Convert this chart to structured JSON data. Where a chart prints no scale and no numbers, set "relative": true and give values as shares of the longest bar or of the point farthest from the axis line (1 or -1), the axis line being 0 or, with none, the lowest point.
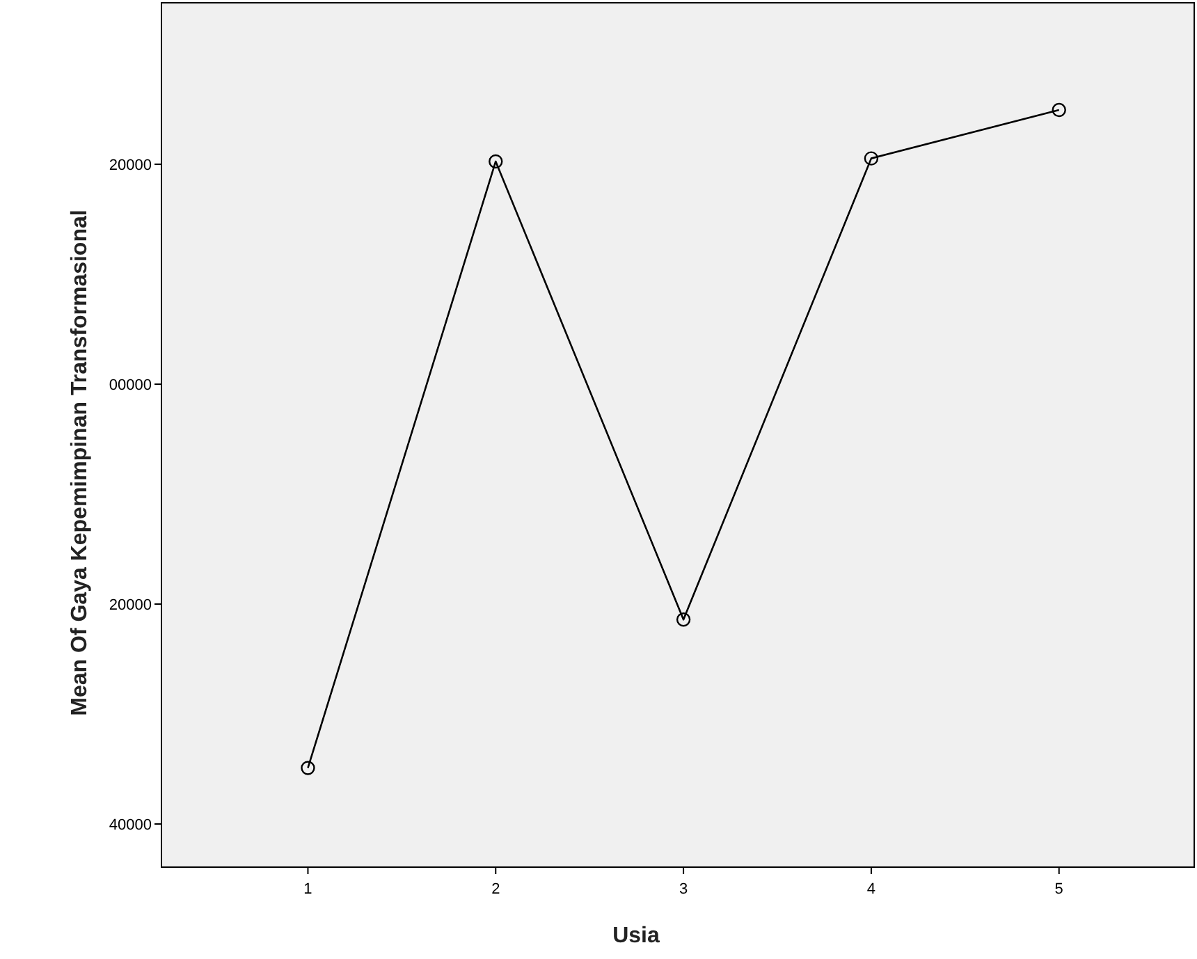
{
  "chart_data": {
    "type": "line",
    "xlabel": "Usia",
    "ylabel": "Mean Of Gaya Kepemimpinan Transformasional",
    "categories": [
      "1",
      "2",
      "3",
      "4",
      "5"
    ],
    "series": [
      {
        "color": "#000000",
        "values": [
          0.131,
          0.932,
          0.327,
          0.936,
          1
        ]
      }
    ],
    "relative": true,
    "annotations": [
      "40000",
      "20000",
      "00000",
      "20000"
    ],
    "marker": "circle",
    "line_style": "solid"
  }
}
